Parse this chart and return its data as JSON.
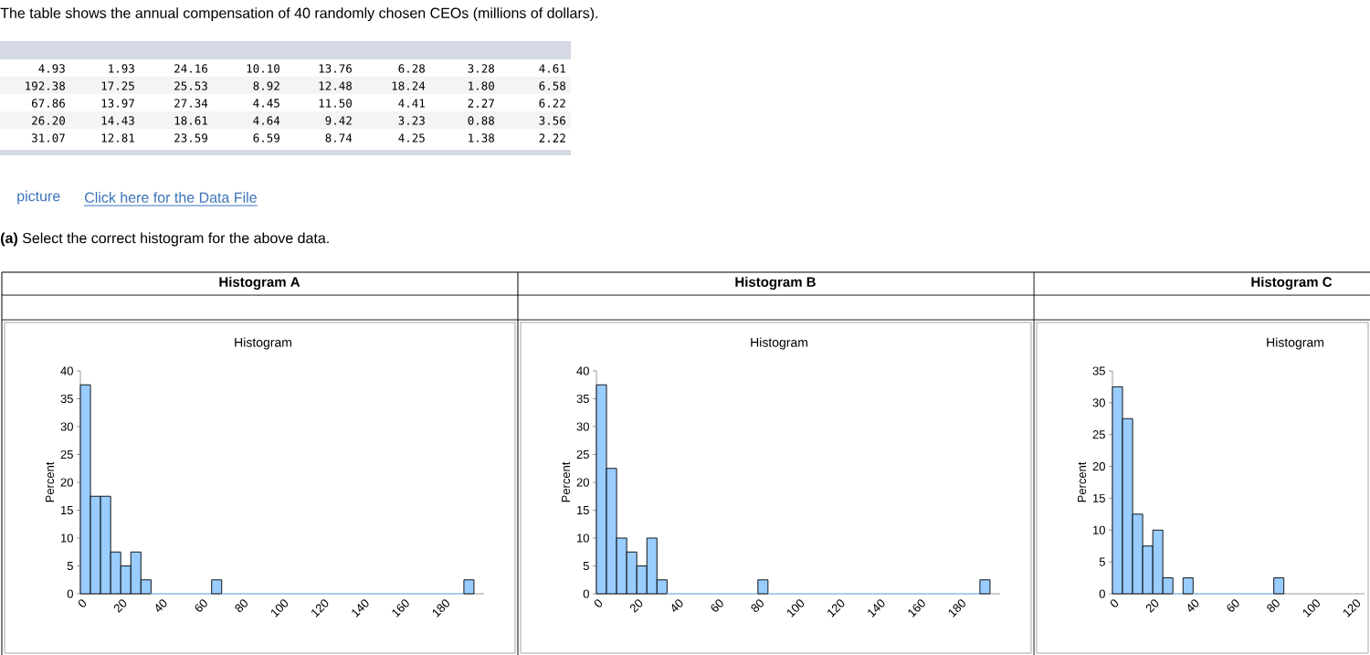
{
  "chart_data": [
    {
      "type": "other",
      "title": "The table shows the annual compensation of 40 randomly chosen CEOs (millions of dollars).",
      "annotations": [
        "4.93",
        "1.93",
        "24.16",
        "10.10",
        "13.76",
        "6.28",
        "3.28",
        "4.61",
        "192.38",
        "17.25",
        "25.53",
        "8.92",
        "12.48",
        "18.24",
        "1.80",
        "6.58",
        "67.86",
        "13.97",
        "27.34",
        "4.45",
        "11.50",
        "4.41",
        "2.27",
        "6.22",
        "26.20",
        "14.43",
        "18.61",
        "4.64",
        "9.42",
        "3.23",
        "0.88",
        "3.56",
        "31.07",
        "12.81",
        "23.59",
        "6.59",
        "8.74",
        "4.25",
        "1.38",
        "2.22",
        "picture",
        "Click here for the Data File",
        "**(a)** Select the correct histogram for the above data."
      ]
    },
    {
      "type": "histogram",
      "title": "Histogram A",
      "subtitle": "Histogram",
      "ylabel": "Percent",
      "color": "#99ccff",
      "bins": [
        0,
        5,
        10,
        15,
        20,
        25,
        30,
        35,
        40,
        45,
        50,
        55,
        60,
        65,
        70,
        75,
        80,
        85,
        90,
        95,
        100,
        105,
        110,
        115,
        120,
        125,
        130,
        135,
        140,
        145,
        150,
        155,
        160,
        165,
        170,
        175,
        180,
        185,
        190,
        195
      ],
      "values": [
        37.5,
        17.5,
        17.5,
        7.5,
        5,
        7.5,
        2.5,
        0,
        0,
        0,
        0,
        0,
        0,
        2.5,
        0,
        0,
        0,
        0,
        0,
        0,
        0,
        0,
        0,
        0,
        0,
        0,
        0,
        0,
        0,
        0,
        0,
        0,
        0,
        0,
        0,
        0,
        0,
        0,
        2.5
      ],
      "xlim": [
        0,
        200
      ],
      "ylim": [
        0,
        40
      ],
      "xticks": [
        0,
        20,
        40,
        60,
        80,
        100,
        120,
        140,
        160,
        180
      ],
      "yticks": [
        0,
        5,
        10,
        15,
        20,
        25,
        30,
        35,
        40
      ]
    },
    {
      "type": "histogram",
      "title": "Histogram B",
      "subtitle": "Histogram",
      "ylabel": "Percent",
      "color": "#99ccff",
      "bins": [
        0,
        5,
        10,
        15,
        20,
        25,
        30,
        35,
        40,
        45,
        50,
        55,
        60,
        65,
        70,
        75,
        80,
        85,
        90,
        95,
        100,
        105,
        110,
        115,
        120,
        125,
        130,
        135,
        140,
        145,
        150,
        155,
        160,
        165,
        170,
        175,
        180,
        185,
        190,
        195
      ],
      "values": [
        37.5,
        22.5,
        10,
        7.5,
        5,
        10,
        2.5,
        0,
        0,
        0,
        0,
        0,
        0,
        0,
        0,
        0,
        2.5,
        0,
        0,
        0,
        0,
        0,
        0,
        0,
        0,
        0,
        0,
        0,
        0,
        0,
        0,
        0,
        0,
        0,
        0,
        0,
        0,
        0,
        2.5
      ],
      "xlim": [
        0,
        200
      ],
      "ylim": [
        0,
        40
      ],
      "xticks": [
        0,
        20,
        40,
        60,
        80,
        100,
        120,
        140,
        160,
        180
      ],
      "yticks": [
        0,
        5,
        10,
        15,
        20,
        25,
        30,
        35,
        40
      ]
    },
    {
      "type": "histogram",
      "title": "Histogram C",
      "subtitle": "Histogram",
      "ylabel": "Percent",
      "color": "#99ccff",
      "bins": [
        0,
        5,
        10,
        15,
        20,
        25,
        30,
        35,
        40,
        45,
        50,
        55,
        60,
        65,
        70,
        75,
        80,
        85
      ],
      "values": [
        32.5,
        27.5,
        12.5,
        7.5,
        10,
        2.5,
        0,
        2.5,
        0,
        0,
        0,
        0,
        0,
        0,
        0,
        0,
        2.5
      ],
      "xlim": [
        0,
        125
      ],
      "ylim": [
        0,
        35
      ],
      "xticks": [
        0,
        20,
        40,
        60,
        80,
        100,
        120
      ],
      "yticks": [
        0,
        5,
        10,
        15,
        20,
        25,
        30,
        35
      ]
    }
  ]
}
